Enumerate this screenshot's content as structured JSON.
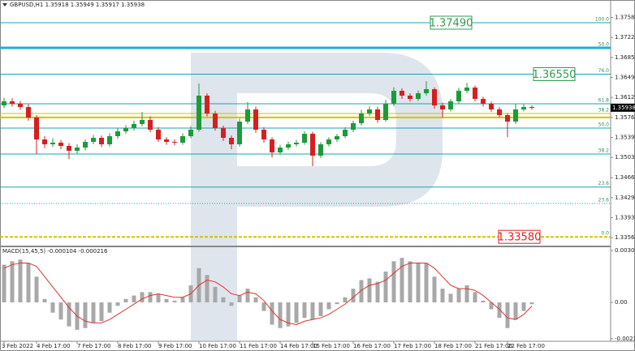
{
  "chart_data": [
    {
      "type": "candlestick",
      "title": "GBPUSD,H1  1.35918 1.35949 1.35917 1.35938",
      "categories": [
        "3 Feb 2022",
        null,
        null,
        null,
        "4 Feb 17:00",
        null,
        null,
        null,
        null,
        "7 Feb 17:00",
        null,
        null,
        null,
        null,
        "8 Feb 17:00",
        null,
        null,
        null,
        null,
        "9 Feb 17:00",
        null,
        null,
        null,
        null,
        "10 Feb 17:00",
        null,
        null,
        null,
        null,
        "11 Feb 17:00",
        null,
        null,
        null,
        null,
        "14 Feb 17:00",
        null,
        null,
        null,
        "15 Feb 17:00",
        null,
        null,
        null,
        null,
        "16 Feb 17:00",
        null,
        null,
        null,
        null,
        "17 Feb 17:00",
        null,
        null,
        null,
        null,
        "18 Feb 17:00",
        null,
        null,
        null,
        null,
        "21 Feb 17:00",
        null,
        null,
        null,
        "22 Feb 17:00",
        null,
        null,
        null
      ],
      "open": [
        1.3598,
        1.36054,
        1.3601,
        1.3595,
        1.35758,
        1.35358,
        1.3527,
        1.35299,
        1.3524,
        1.35151,
        1.3521,
        1.35314,
        1.35388,
        1.3527,
        1.35418,
        1.35506,
        1.35566,
        1.3564,
        1.35714,
        1.35536,
        1.35358,
        1.35314,
        1.35299,
        1.35418,
        1.35536,
        1.36158,
        1.35832,
        1.35566,
        1.35388,
        1.3527,
        1.35684,
        1.35906,
        1.35536,
        1.35358,
        1.35122,
        1.3521,
        1.3527,
        1.35299,
        1.35462,
        1.35062,
        1.3527,
        1.35358,
        1.35418,
        1.35536,
        1.35654,
        1.35832,
        1.35906,
        1.35714,
        1.3601,
        1.36246,
        1.36158,
        1.36098,
        1.36202,
        1.36276,
        1.3598,
        1.35906,
        1.36054,
        1.36246,
        1.36306,
        1.36098,
        1.3601,
        1.35906,
        1.35802,
        1.35684,
        1.35906,
        1.3595
      ],
      "high": [
        1.3612,
        1.3611,
        1.3606,
        1.36,
        1.358,
        1.3542,
        1.3538,
        1.3535,
        1.3529,
        1.3527,
        1.3536,
        1.3544,
        1.3543,
        1.3547,
        1.3556,
        1.3562,
        1.357,
        1.3586,
        1.3578,
        1.3558,
        1.354,
        1.3536,
        1.3547,
        1.356,
        1.3638,
        1.362,
        1.3588,
        1.3561,
        1.3543,
        1.3574,
        1.3604,
        1.3596,
        1.3558,
        1.354,
        1.3526,
        1.3532,
        1.3535,
        1.3551,
        1.355,
        1.3531,
        1.354,
        1.3546,
        1.3558,
        1.357,
        1.359,
        1.3596,
        1.3595,
        1.3608,
        1.3631,
        1.3629,
        1.362,
        1.3625,
        1.3642,
        1.3631,
        1.3603,
        1.361,
        1.363,
        1.3639,
        1.3634,
        1.3614,
        1.3605,
        1.3595,
        1.3584,
        1.3601,
        1.36,
        1.3598
      ],
      "low": [
        1.3593,
        1.3596,
        1.359,
        1.357,
        1.35092,
        1.352,
        1.3522,
        1.3518,
        1.35,
        1.351,
        1.3516,
        1.3527,
        1.3522,
        1.3523,
        1.3537,
        1.3546,
        1.3552,
        1.356,
        1.3549,
        1.3531,
        1.3526,
        1.3525,
        1.3526,
        1.3538,
        1.355,
        1.3578,
        1.3552,
        1.3533,
        1.3518,
        1.3523,
        1.3564,
        1.3548,
        1.353,
        1.3503,
        1.3508,
        1.3517,
        1.3523,
        1.3526,
        1.3487,
        1.3502,
        1.3523,
        1.3531,
        1.3538,
        1.3549,
        1.3561,
        1.3579,
        1.3566,
        1.3568,
        1.3597,
        1.361,
        1.3605,
        1.3606,
        1.3616,
        1.3592,
        1.3576,
        1.3587,
        1.3601,
        1.362,
        1.3605,
        1.3596,
        1.3586,
        1.3576,
        1.354,
        1.3564,
        1.3587,
        1.359
      ],
      "close": [
        1.36054,
        1.3601,
        1.3595,
        1.35758,
        1.35358,
        1.3527,
        1.35299,
        1.3524,
        1.35151,
        1.3521,
        1.35314,
        1.35388,
        1.3527,
        1.35418,
        1.35506,
        1.35566,
        1.3564,
        1.35714,
        1.35536,
        1.35358,
        1.35314,
        1.35299,
        1.35418,
        1.35536,
        1.36158,
        1.35832,
        1.35566,
        1.35388,
        1.3527,
        1.35684,
        1.35906,
        1.35536,
        1.35358,
        1.35122,
        1.3521,
        1.3527,
        1.35299,
        1.35462,
        1.35062,
        1.3527,
        1.35358,
        1.35418,
        1.35536,
        1.35654,
        1.35832,
        1.35906,
        1.35714,
        1.3601,
        1.36246,
        1.36158,
        1.36098,
        1.36202,
        1.36276,
        1.3598,
        1.35906,
        1.36054,
        1.36246,
        1.36306,
        1.36098,
        1.3601,
        1.35906,
        1.35802,
        1.35684,
        1.35906,
        1.3595,
        1.35938
      ],
      "up_color": "#1e9a3a",
      "down_color": "#d42020",
      "ylim": [
        1.3342,
        1.3783
      ],
      "yticks": [
        1.37585,
        {
          "value": 1.3722,
          "label": "1.37220"
        },
        1.36855,
        {
          "value": 1.3649,
          "label": "1.36490"
        },
        1.36125,
        {
          "value": 1.3576,
          "label": "1.35760"
        },
        1.35395,
        {
          "value": 1.3503,
          "label": "1.35030"
        },
        {
          "value": 1.3466,
          "label": "1.34660"
        },
        1.34295,
        {
          "value": 1.3393,
          "label": "1.33930"
        },
        1.33565
      ],
      "levels": [
        {
          "label": "100.0",
          "value": 1.3749,
          "color": "#1aa3b0"
        },
        {
          "label": "50.0",
          "value": 1.37031,
          "color": "#1ab0d8",
          "width": 3
        },
        {
          "label": "76.0",
          "value": 1.3655,
          "color": "#1aa3b0"
        },
        {
          "label": "61.8",
          "value": 1.3601,
          "color": "#1aa3b0"
        },
        {
          "label": "38.2",
          "value": 1.35832,
          "color": "#d4c000"
        },
        {
          "value": 1.3576,
          "color": "#d4c000",
          "width": 2
        },
        {
          "label": "50.0",
          "value": 1.35566,
          "color": "#1aa3b0"
        },
        {
          "label": "38.2",
          "value": 1.35092,
          "color": "#1aa3b0"
        },
        {
          "label": "23.6",
          "value": 1.3449,
          "color": "#1aa3b0"
        },
        {
          "label": "23.6",
          "value": 1.3419,
          "color": "#1aa3b0",
          "style": "dotted"
        },
        {
          "label": "0.0",
          "value": 1.3358,
          "color": "#d4c000",
          "style": "dashed",
          "width": 2
        }
      ],
      "price_boxes": [
        {
          "value": 1.3749,
          "label": "1.37490",
          "color": "#2e9e4f"
        },
        {
          "value": 1.3655,
          "label": "1.36550",
          "color": "#2e9e4f"
        },
        {
          "value": 1.3358,
          "label": "1.33580",
          "color": "#e02020"
        }
      ],
      "current_price": 1.35938
    },
    {
      "type": "macd",
      "title": "MACD(15,45,5) -0.000104 -0.000216",
      "histogram": [
        0.0022,
        0.0024,
        0.0025,
        0.0023,
        0.0015,
        0.0002,
        -0.0006,
        -0.001,
        -0.0014,
        -0.0016,
        -0.0015,
        -0.0012,
        -0.0011,
        -0.0006,
        -0.0002,
        0.0002,
        0.0004,
        0.0006,
        0.0006,
        0.0005,
        0.0002,
        0.0001,
        0.0003,
        0.001,
        0.002,
        0.0016,
        0.0009,
        0.0003,
        -0.0002,
        0.0004,
        0.0008,
        0.0003,
        -0.0005,
        -0.0013,
        -0.0015,
        -0.0014,
        -0.0012,
        -0.0009,
        -0.001,
        -0.0008,
        -0.0004,
        -0.0001,
        0.0003,
        0.0008,
        0.0013,
        0.0014,
        0.0012,
        0.0018,
        0.0024,
        0.0026,
        0.0024,
        0.0023,
        0.0023,
        0.0015,
        0.0008,
        0.0005,
        0.0008,
        0.001,
        0.0006,
        0.0001,
        -0.0004,
        -0.0009,
        -0.0015,
        -0.001,
        -0.0005,
        -0.000104
      ],
      "signal": [
        0.002,
        0.0022,
        0.0023,
        0.0023,
        0.0021,
        0.0015,
        0.0009,
        0.0003,
        -0.0003,
        -0.0008,
        -0.0011,
        -0.0012,
        -0.0012,
        -0.001,
        -0.0007,
        -0.0004,
        -0.0001,
        0.0002,
        0.0004,
        0.0005,
        0.0004,
        0.0003,
        0.0003,
        0.0005,
        0.001,
        0.0013,
        0.0012,
        0.0009,
        0.0005,
        0.0004,
        0.0006,
        0.0005,
        0.0001,
        -0.0005,
        -0.001,
        -0.0012,
        -0.0013,
        -0.0011,
        -0.001,
        -0.0009,
        -0.0007,
        -0.0004,
        -0.0001,
        0.0003,
        0.0007,
        0.001,
        0.0011,
        0.0013,
        0.0017,
        0.0021,
        0.0023,
        0.0023,
        0.0023,
        0.002,
        0.0015,
        0.001,
        0.0008,
        0.0008,
        0.0007,
        0.0004,
        0,
        -0.0004,
        -0.0009,
        -0.001,
        -0.0007,
        -0.000216
      ],
      "histogram_color": "#a8a8a8",
      "signal_color": "#e03030",
      "ylim": [
        -0.00227,
        0.00322
      ],
      "yticks": [
        0.003029,
        {
          "value": 0,
          "label": "0.00"
        },
        -0.002118
      ]
    }
  ]
}
